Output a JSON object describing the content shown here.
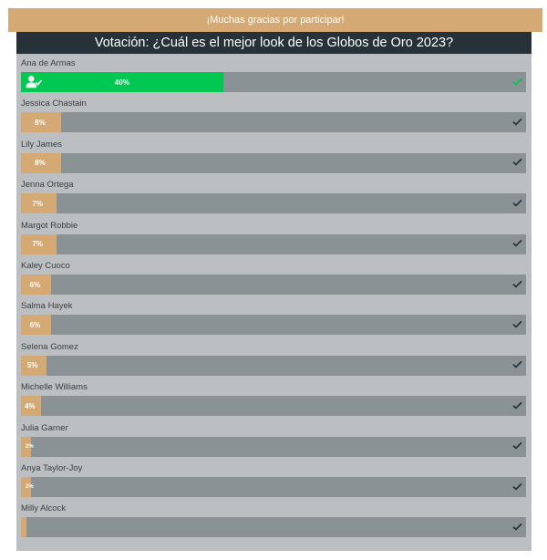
{
  "banner": {
    "text": "¡Muchas gracias por participar!"
  },
  "poll": {
    "title": "Votación: ¿Cuál es el mejor look de los Globos de Oro 2023?",
    "options": [
      {
        "name": "Ana de Armas",
        "percent_label": "40%",
        "percent": 40,
        "selected": true
      },
      {
        "name": "Jessica Chastain",
        "percent_label": "8%",
        "percent": 8,
        "selected": false
      },
      {
        "name": "Lily James",
        "percent_label": "8%",
        "percent": 8,
        "selected": false
      },
      {
        "name": "Jenna Ortega",
        "percent_label": "7%",
        "percent": 7,
        "selected": false
      },
      {
        "name": "Margot Robbie",
        "percent_label": "7%",
        "percent": 7,
        "selected": false
      },
      {
        "name": "Kaley Cuoco",
        "percent_label": "6%",
        "percent": 6,
        "selected": false
      },
      {
        "name": "Salma Hayek",
        "percent_label": "6%",
        "percent": 6,
        "selected": false
      },
      {
        "name": "Selena Gomez",
        "percent_label": "5%",
        "percent": 5,
        "selected": false
      },
      {
        "name": "Michelle Williams",
        "percent_label": "4%",
        "percent": 4,
        "selected": false
      },
      {
        "name": "Julia Garner",
        "percent_label": "2%",
        "percent": 2,
        "selected": false
      },
      {
        "name": "Anya Taylor-Joy",
        "percent_label": "2%",
        "percent": 2,
        "selected": false
      },
      {
        "name": "Milly Alcock",
        "percent_label": "",
        "percent": 1,
        "selected": false
      }
    ]
  },
  "colors": {
    "accent": "#d5a973",
    "selected": "#00c851",
    "header": "#263238",
    "track": "#8b9295",
    "panel": "#bbbfc1"
  },
  "icons": {
    "selected_marker": "user-check-icon",
    "check": "check-icon"
  }
}
